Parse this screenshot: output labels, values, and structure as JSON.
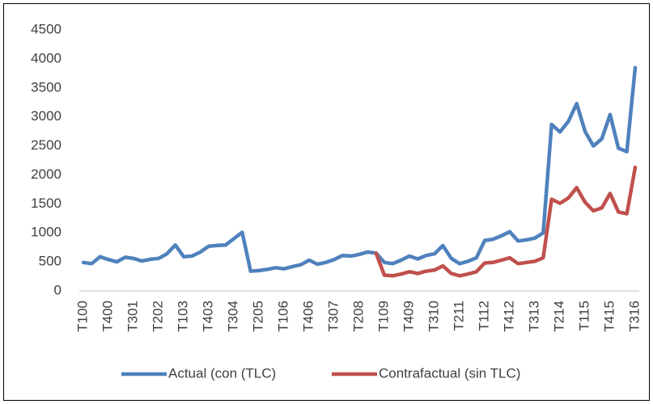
{
  "chart_data": {
    "type": "line",
    "categories": [
      "T100",
      null,
      null,
      "T400",
      null,
      null,
      "T301",
      null,
      null,
      "T202",
      null,
      null,
      "T103",
      null,
      null,
      "T403",
      null,
      null,
      "T304",
      null,
      null,
      "T205",
      null,
      null,
      "T106",
      null,
      null,
      "T406",
      null,
      null,
      "T307",
      null,
      null,
      "T208",
      null,
      null,
      "T109",
      null,
      null,
      "T409",
      null,
      null,
      "T310",
      null,
      null,
      "T211",
      null,
      null,
      "T112",
      null,
      null,
      "T412",
      null,
      null,
      "T313",
      null,
      null,
      "T214",
      null,
      null,
      "T115",
      null,
      null,
      "T415",
      null,
      null,
      "T316"
    ],
    "series": [
      {
        "name": "Actual (con (TLC)",
        "color": "#4f81bd",
        "values": [
          490,
          470,
          590,
          540,
          500,
          580,
          560,
          515,
          545,
          560,
          640,
          790,
          590,
          600,
          670,
          770,
          785,
          790,
          900,
          1010,
          340,
          350,
          370,
          400,
          380,
          420,
          450,
          530,
          460,
          490,
          540,
          610,
          600,
          630,
          670,
          650,
          490,
          470,
          530,
          600,
          550,
          610,
          640,
          780,
          560,
          470,
          510,
          570,
          870,
          890,
          950,
          1020,
          860,
          880,
          910,
          1000,
          2870,
          2740,
          2920,
          3230,
          2750,
          2500,
          2620,
          3040,
          2460,
          2400,
          3850
        ]
      },
      {
        "name": "Contrafactual (sin TLC)",
        "color": "#c0504d",
        "values": [
          null,
          null,
          null,
          null,
          null,
          null,
          null,
          null,
          null,
          null,
          null,
          null,
          null,
          null,
          null,
          null,
          null,
          null,
          null,
          null,
          null,
          null,
          null,
          null,
          null,
          null,
          null,
          null,
          null,
          null,
          null,
          null,
          null,
          null,
          null,
          650,
          270,
          260,
          290,
          330,
          300,
          340,
          360,
          430,
          300,
          260,
          290,
          330,
          480,
          490,
          530,
          570,
          470,
          490,
          510,
          570,
          1580,
          1510,
          1600,
          1780,
          1530,
          1380,
          1430,
          1680,
          1360,
          1330,
          2130
        ]
      }
    ],
    "ylim": [
      0,
      4500
    ],
    "yticks": [
      0,
      500,
      1000,
      1500,
      2000,
      2500,
      3000,
      3500,
      4000,
      4500
    ],
    "grid": false,
    "legend": "bottom"
  }
}
